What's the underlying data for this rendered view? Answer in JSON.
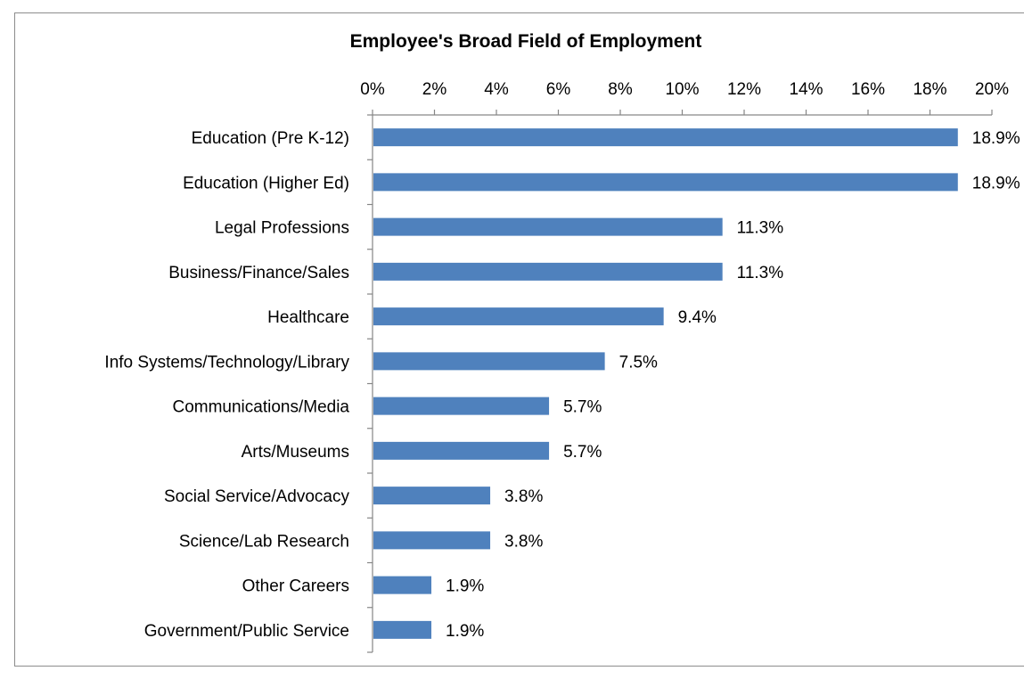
{
  "chart_data": {
    "type": "bar",
    "orientation": "horizontal",
    "title": "Employee's Broad Field of Employment",
    "x_axis_position": "top",
    "xlim": [
      0,
      20
    ],
    "x_ticks": [
      "0%",
      "2%",
      "4%",
      "6%",
      "8%",
      "10%",
      "12%",
      "14%",
      "16%",
      "18%",
      "20%"
    ],
    "grid": false,
    "legend": "none",
    "bar_color": "#4f81bd",
    "categories": [
      "Education (Pre K-12)",
      "Education (Higher Ed)",
      "Legal Professions",
      "Business/Finance/Sales",
      "Healthcare",
      "Info Systems/Technology/Library",
      "Communications/Media",
      "Arts/Museums",
      "Social Service/Advocacy",
      "Science/Lab Research",
      "Other Careers",
      "Government/Public Service"
    ],
    "values": [
      18.9,
      18.9,
      11.3,
      11.3,
      9.4,
      7.5,
      5.7,
      5.7,
      3.8,
      3.8,
      1.9,
      1.9
    ],
    "value_labels": [
      "18.9%",
      "18.9%",
      "11.3%",
      "11.3%",
      "9.4%",
      "7.5%",
      "5.7%",
      "5.7%",
      "3.8%",
      "3.8%",
      "1.9%",
      "1.9%"
    ]
  }
}
